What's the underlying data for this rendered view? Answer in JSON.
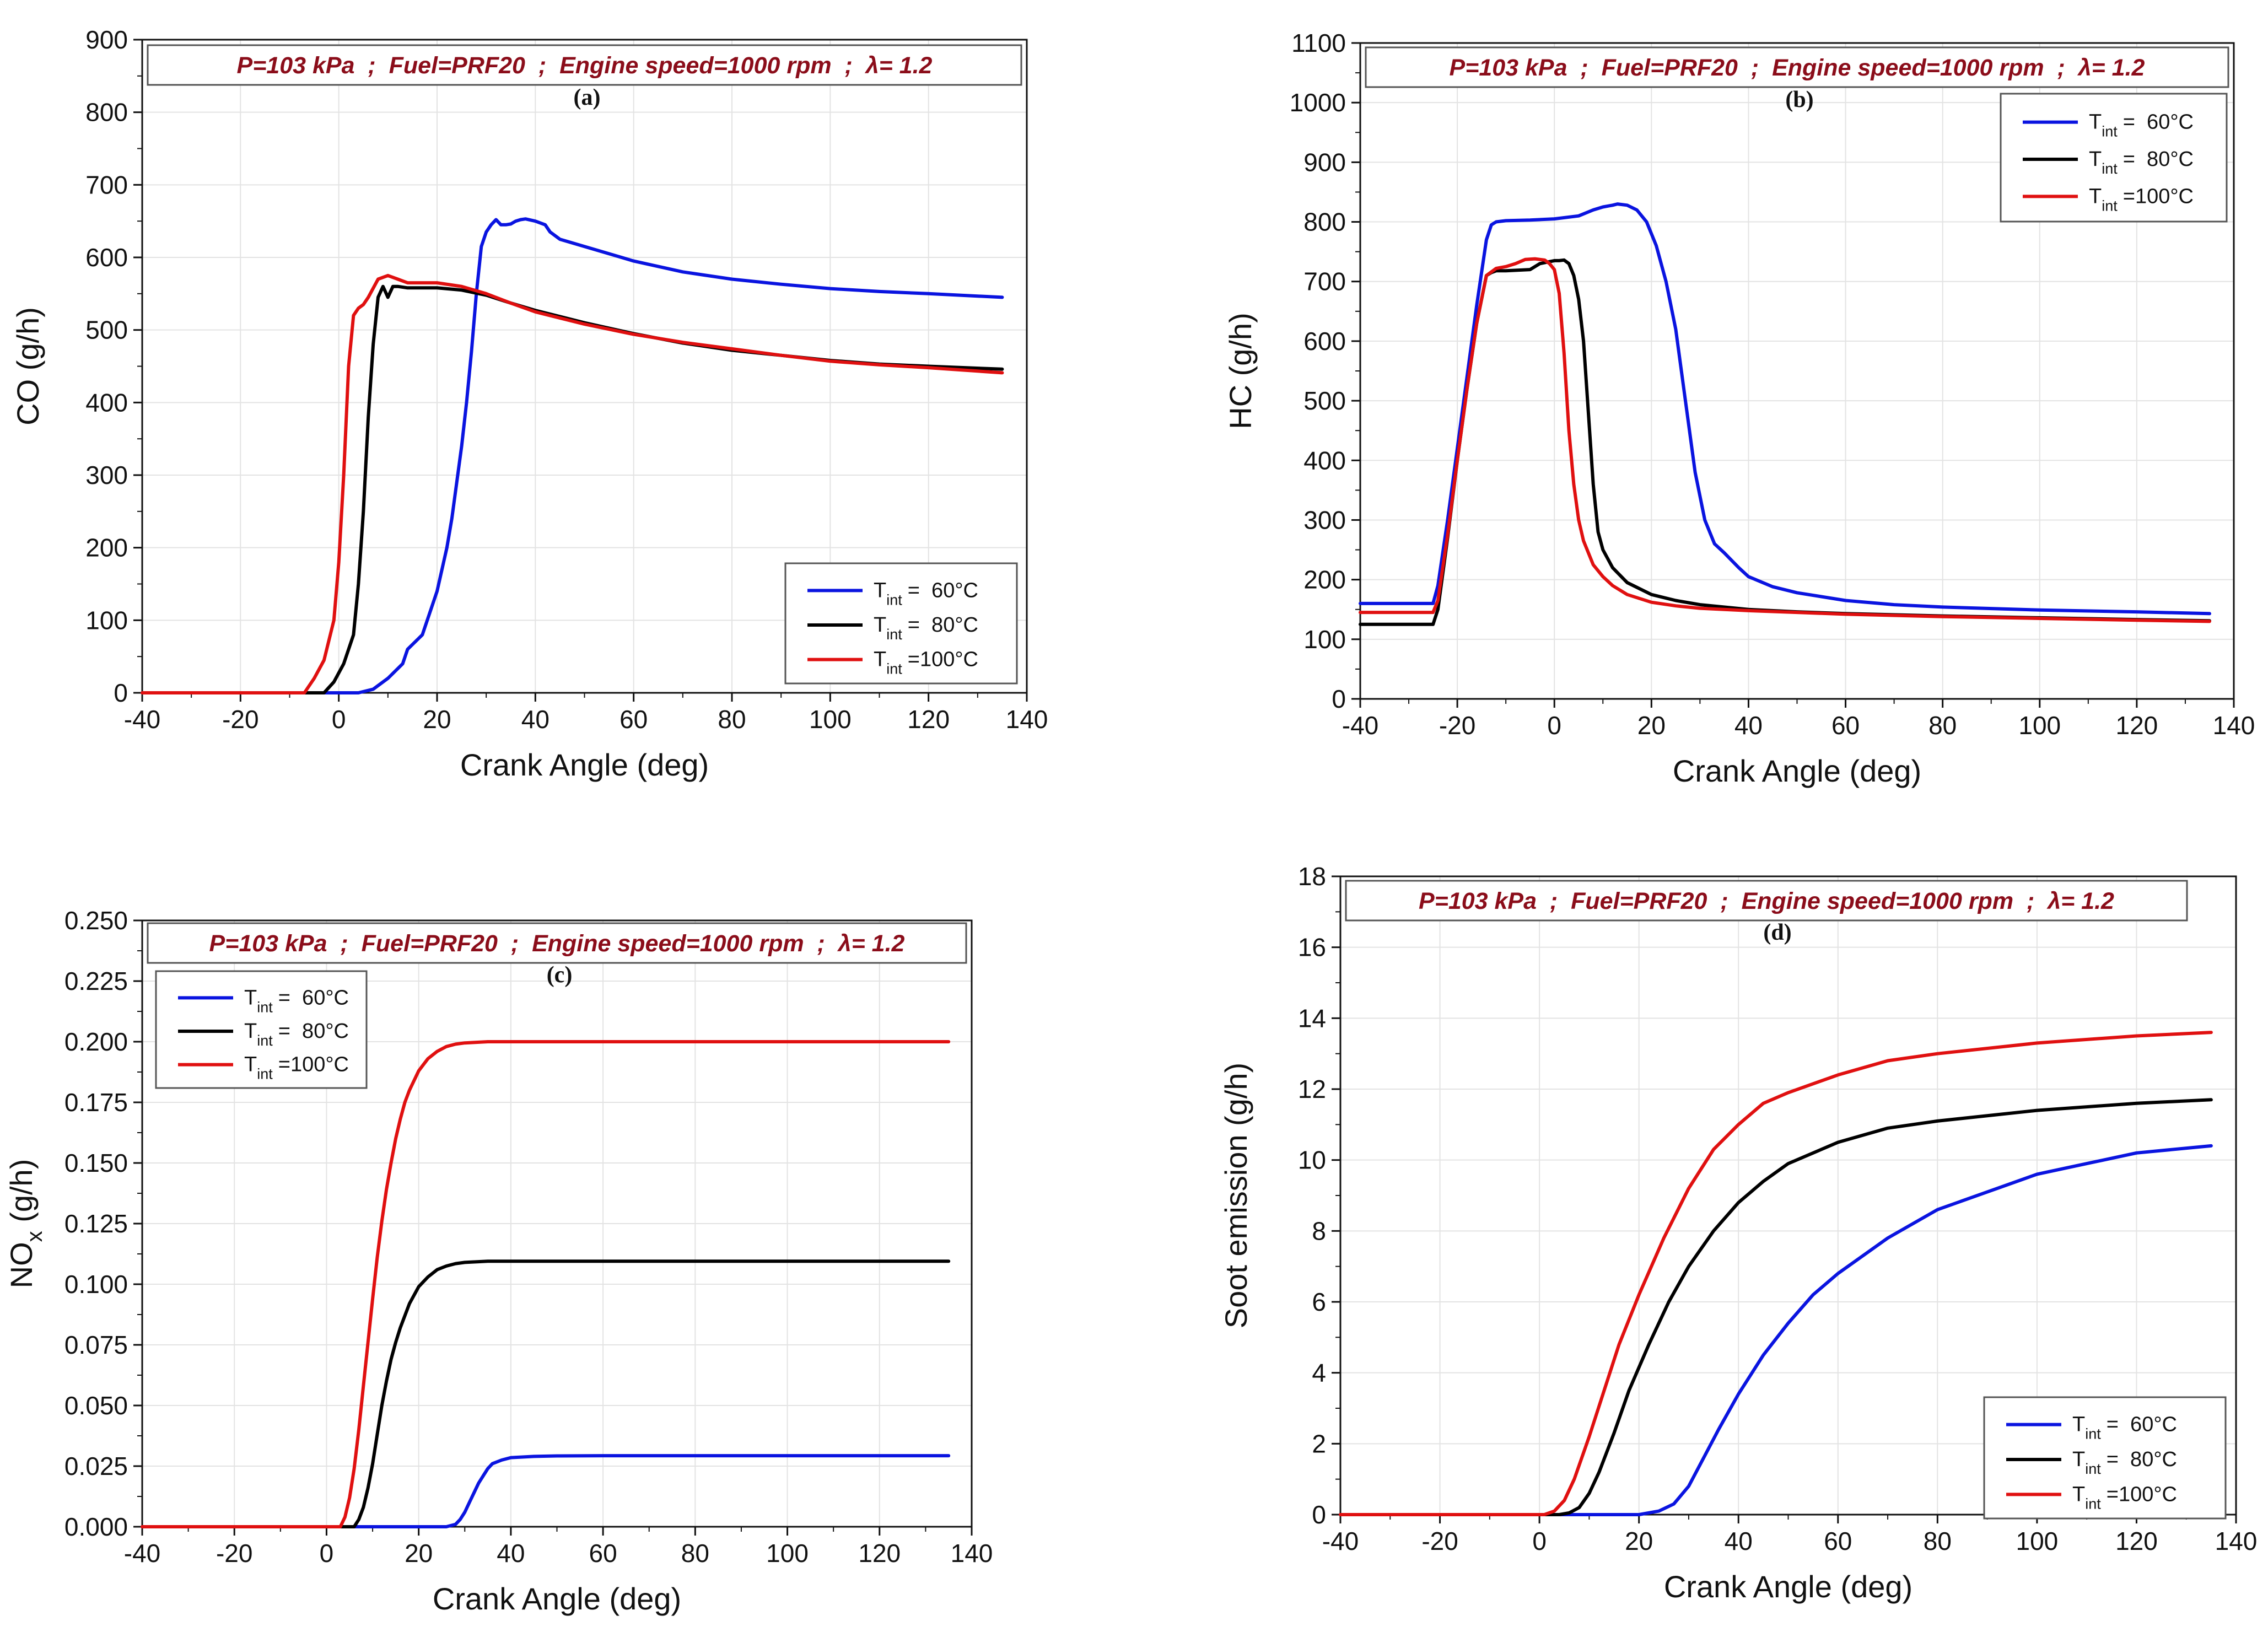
{
  "figure": {
    "condition_text": "P=103 kPa  ;  Fuel=PRF20  ;  Engine speed=1000 rpm  ;  λ= 1.2"
  },
  "legend_labels": {
    "main": "T",
    "sub": "int",
    "entries": [
      "=  60°C",
      "=  80°C",
      "=100°C"
    ]
  },
  "colors": {
    "series": [
      "#0a14e0",
      "#000000",
      "#e01010"
    ],
    "grid": "#e3e3e3",
    "condition_text": "#8b0d1a",
    "condition_box": "#555555"
  },
  "chart_data": [
    {
      "type": "line",
      "panel": "(a)",
      "xlabel": "Crank Angle (deg)",
      "ylabel": "CO (g/h)",
      "xlim": [
        -40,
        140
      ],
      "ylim": [
        0,
        900
      ],
      "xticks": [
        -40,
        -20,
        0,
        20,
        40,
        60,
        80,
        100,
        120,
        140
      ],
      "xtick_labels": [
        "-40",
        "-20",
        "0",
        "20",
        "40",
        "60",
        "80",
        "100",
        "120",
        "140"
      ],
      "yticks": [
        0,
        100,
        200,
        300,
        400,
        500,
        600,
        700,
        800,
        900
      ],
      "ytick_labels": [
        "0",
        "100",
        "200",
        "300",
        "400",
        "500",
        "600",
        "700",
        "800",
        "900"
      ],
      "legend": "bottom-right",
      "series": [
        {
          "name": "Tint = 60°C",
          "x": [
            -40,
            4,
            7,
            10,
            13,
            14,
            17,
            18,
            20,
            22,
            23,
            24,
            25,
            26,
            27,
            28,
            29,
            30,
            31,
            32,
            33,
            34,
            35,
            36,
            37,
            38,
            40,
            42,
            43,
            45,
            50,
            55,
            60,
            70,
            80,
            90,
            100,
            110,
            120,
            135
          ],
          "y": [
            0,
            0,
            5,
            20,
            40,
            60,
            80,
            100,
            140,
            200,
            240,
            290,
            340,
            400,
            470,
            550,
            615,
            635,
            645,
            652,
            645,
            645,
            646,
            650,
            652,
            653,
            650,
            645,
            635,
            625,
            615,
            605,
            595,
            580,
            570,
            563,
            557,
            553,
            550,
            545
          ]
        },
        {
          "name": "Tint = 80°C",
          "x": [
            -40,
            -3,
            -1,
            1,
            3,
            4,
            5,
            6,
            7,
            8,
            9,
            10,
            11,
            12,
            14,
            16,
            20,
            25,
            30,
            35,
            40,
            50,
            60,
            70,
            80,
            90,
            100,
            110,
            120,
            135
          ],
          "y": [
            0,
            0,
            15,
            40,
            80,
            150,
            250,
            380,
            480,
            545,
            560,
            545,
            560,
            560,
            558,
            558,
            558,
            555,
            548,
            537,
            527,
            510,
            495,
            482,
            472,
            465,
            458,
            453,
            450,
            446
          ]
        },
        {
          "name": "Tint = 100°C",
          "x": [
            -40,
            -7,
            -5,
            -3,
            -1,
            0,
            1,
            2,
            3,
            4,
            5,
            6,
            8,
            10,
            12,
            14,
            16,
            20,
            25,
            30,
            35,
            40,
            50,
            60,
            70,
            80,
            90,
            100,
            110,
            120,
            135
          ],
          "y": [
            0,
            0,
            20,
            45,
            100,
            180,
            300,
            450,
            520,
            530,
            535,
            545,
            570,
            575,
            570,
            565,
            565,
            565,
            560,
            550,
            537,
            525,
            508,
            494,
            483,
            474,
            465,
            457,
            452,
            448,
            441
          ]
        }
      ]
    },
    {
      "type": "line",
      "panel": "(b)",
      "xlabel": "Crank Angle (deg)",
      "ylabel": "HC (g/h)",
      "xlim": [
        -40,
        140
      ],
      "ylim": [
        0,
        1100
      ],
      "xticks": [
        -40,
        -20,
        0,
        20,
        40,
        60,
        80,
        100,
        120,
        140
      ],
      "xtick_labels": [
        "-40",
        "-20",
        "0",
        "20",
        "40",
        "60",
        "80",
        "100",
        "120",
        "140"
      ],
      "yticks": [
        0,
        100,
        200,
        300,
        400,
        500,
        600,
        700,
        800,
        900,
        1000,
        1100
      ],
      "ytick_labels": [
        "0",
        "100",
        "200",
        "300",
        "400",
        "500",
        "600",
        "700",
        "800",
        "900",
        "1000",
        "1100"
      ],
      "legend": "top-right",
      "series": [
        {
          "name": "Tint = 60°C",
          "x": [
            -40,
            -25,
            -24,
            -22,
            -20,
            -18,
            -16,
            -14,
            -13,
            -12,
            -10,
            -5,
            0,
            5,
            8,
            10,
            12,
            13,
            15,
            17,
            19,
            21,
            23,
            25,
            27,
            29,
            31,
            33,
            35,
            38,
            40,
            45,
            50,
            60,
            70,
            80,
            100,
            120,
            135
          ],
          "y": [
            160,
            160,
            190,
            300,
            420,
            540,
            660,
            770,
            795,
            800,
            802,
            803,
            805,
            810,
            820,
            825,
            828,
            830,
            828,
            820,
            800,
            760,
            700,
            620,
            500,
            380,
            300,
            260,
            245,
            220,
            205,
            188,
            178,
            165,
            158,
            154,
            149,
            146,
            143
          ]
        },
        {
          "name": "Tint = 80°C",
          "x": [
            -40,
            -25,
            -24,
            -22,
            -20,
            -18,
            -16,
            -14,
            -13,
            -12,
            -10,
            -5,
            -3,
            0,
            1,
            2,
            3,
            4,
            5,
            6,
            7,
            8,
            9,
            10,
            12,
            15,
            20,
            25,
            30,
            40,
            50,
            60,
            80,
            100,
            120,
            135
          ],
          "y": [
            125,
            125,
            150,
            270,
            400,
            520,
            630,
            710,
            715,
            718,
            718,
            720,
            730,
            735,
            735,
            736,
            730,
            710,
            670,
            600,
            480,
            360,
            280,
            250,
            220,
            195,
            175,
            165,
            158,
            150,
            146,
            143,
            139,
            136,
            133,
            131
          ]
        },
        {
          "name": "Tint = 100°C",
          "x": [
            -40,
            -25,
            -24,
            -22,
            -20,
            -18,
            -16,
            -14,
            -12,
            -10,
            -8,
            -6,
            -4,
            -2,
            -1,
            0,
            1,
            2,
            3,
            4,
            5,
            6,
            8,
            10,
            12,
            15,
            20,
            25,
            30,
            40,
            50,
            60,
            80,
            100,
            120,
            135
          ],
          "y": [
            145,
            145,
            165,
            275,
            400,
            520,
            630,
            710,
            722,
            725,
            730,
            737,
            738,
            736,
            730,
            720,
            680,
            580,
            450,
            360,
            300,
            265,
            225,
            205,
            190,
            175,
            162,
            156,
            152,
            148,
            145,
            142,
            138,
            135,
            132,
            130
          ]
        }
      ]
    },
    {
      "type": "line",
      "panel": "(c)",
      "xlabel": "Crank Angle (deg)",
      "ylabel": "NO",
      "ylabel_sub": "x",
      "ylabel_suffix": " (g/h)",
      "xlim": [
        -40,
        140
      ],
      "ylim": [
        0,
        0.25
      ],
      "xticks": [
        -40,
        -20,
        0,
        20,
        40,
        60,
        80,
        100,
        120,
        140
      ],
      "xtick_labels": [
        "-40",
        "-20",
        "0",
        "20",
        "40",
        "60",
        "80",
        "100",
        "120",
        "140"
      ],
      "yticks": [
        0,
        0.025,
        0.05,
        0.075,
        0.1,
        0.125,
        0.15,
        0.175,
        0.2,
        0.225,
        0.25
      ],
      "ytick_labels": [
        "0.000",
        "0.025",
        "0.050",
        "0.075",
        "0.100",
        "0.125",
        "0.150",
        "0.175",
        "0.200",
        "0.225",
        "0.250"
      ],
      "legend": "top-left",
      "series": [
        {
          "name": "Tint = 60°C",
          "x": [
            -40,
            26,
            28,
            29,
            30,
            31,
            32,
            33,
            34,
            35,
            36,
            38,
            40,
            45,
            50,
            60,
            80,
            100,
            135
          ],
          "y": [
            0,
            0,
            0.001,
            0.003,
            0.006,
            0.01,
            0.014,
            0.018,
            0.021,
            0.024,
            0.026,
            0.0275,
            0.0285,
            0.029,
            0.0292,
            0.0293,
            0.0293,
            0.0293,
            0.0293
          ]
        },
        {
          "name": "Tint = 80°C",
          "x": [
            -40,
            6,
            7,
            8,
            9,
            10,
            11,
            12,
            13,
            14,
            15,
            16,
            18,
            20,
            22,
            24,
            26,
            28,
            30,
            35,
            40,
            50,
            70,
            100,
            135
          ],
          "y": [
            0,
            0,
            0.003,
            0.008,
            0.016,
            0.026,
            0.038,
            0.05,
            0.06,
            0.069,
            0.076,
            0.082,
            0.092,
            0.099,
            0.103,
            0.106,
            0.1075,
            0.1085,
            0.109,
            0.1095,
            0.1095,
            0.1095,
            0.1095,
            0.1095,
            0.1095
          ]
        },
        {
          "name": "Tint = 100°C",
          "x": [
            -40,
            3,
            4,
            5,
            6,
            7,
            8,
            9,
            10,
            11,
            12,
            13,
            14,
            15,
            16,
            17,
            18,
            20,
            22,
            24,
            26,
            28,
            30,
            35,
            40,
            50,
            70,
            100,
            135
          ],
          "y": [
            0,
            0,
            0.004,
            0.012,
            0.024,
            0.04,
            0.058,
            0.076,
            0.094,
            0.111,
            0.126,
            0.139,
            0.15,
            0.16,
            0.168,
            0.175,
            0.18,
            0.188,
            0.193,
            0.196,
            0.198,
            0.199,
            0.1995,
            0.2,
            0.2,
            0.2,
            0.2,
            0.2,
            0.2
          ]
        }
      ]
    },
    {
      "type": "line",
      "panel": "(d)",
      "xlabel": "Crank Angle (deg)",
      "ylabel": "Soot emission (g/h)",
      "xlim": [
        -40,
        140
      ],
      "ylim": [
        0,
        18
      ],
      "xticks": [
        -40,
        -20,
        0,
        20,
        40,
        60,
        80,
        100,
        120,
        140
      ],
      "xtick_labels": [
        "-40",
        "-20",
        "0",
        "20",
        "40",
        "60",
        "80",
        "100",
        "120",
        "140"
      ],
      "yticks": [
        0,
        2,
        4,
        6,
        8,
        10,
        12,
        14,
        16,
        18
      ],
      "ytick_labels": [
        "0",
        "2",
        "4",
        "6",
        "8",
        "10",
        "12",
        "14",
        "16",
        "18"
      ],
      "legend": "bottom-right",
      "series": [
        {
          "name": "Tint = 60°C",
          "x": [
            -40,
            20,
            24,
            27,
            30,
            33,
            36,
            40,
            45,
            50,
            55,
            60,
            70,
            80,
            90,
            100,
            110,
            120,
            135
          ],
          "y": [
            0,
            0,
            0.1,
            0.3,
            0.8,
            1.6,
            2.4,
            3.4,
            4.5,
            5.4,
            6.2,
            6.8,
            7.8,
            8.6,
            9.1,
            9.6,
            9.9,
            10.2,
            10.4
          ]
        },
        {
          "name": "Tint = 80°C",
          "x": [
            -40,
            4,
            6,
            8,
            10,
            12,
            15,
            18,
            22,
            26,
            30,
            35,
            40,
            45,
            50,
            60,
            70,
            80,
            100,
            120,
            135
          ],
          "y": [
            0,
            0,
            0.05,
            0.2,
            0.6,
            1.2,
            2.3,
            3.5,
            4.8,
            6.0,
            7.0,
            8.0,
            8.8,
            9.4,
            9.9,
            10.5,
            10.9,
            11.1,
            11.4,
            11.6,
            11.7
          ]
        },
        {
          "name": "Tint = 100°C",
          "x": [
            -40,
            1,
            3,
            5,
            7,
            10,
            13,
            16,
            20,
            25,
            30,
            35,
            40,
            45,
            50,
            60,
            70,
            80,
            100,
            120,
            135
          ],
          "y": [
            0,
            0,
            0.1,
            0.4,
            1.0,
            2.2,
            3.5,
            4.8,
            6.2,
            7.8,
            9.2,
            10.3,
            11.0,
            11.6,
            11.9,
            12.4,
            12.8,
            13.0,
            13.3,
            13.5,
            13.6
          ]
        }
      ]
    }
  ]
}
